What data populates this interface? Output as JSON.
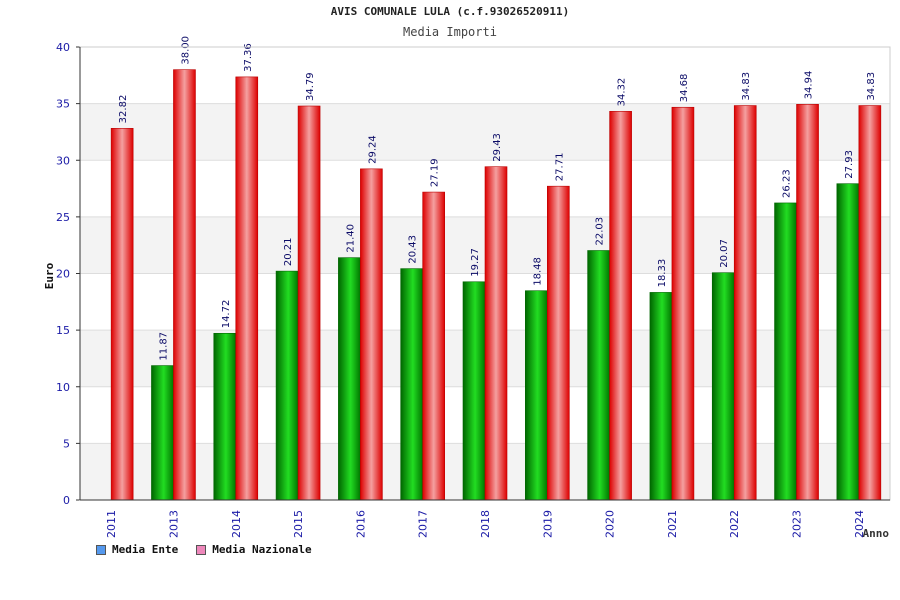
{
  "chart_data": {
    "type": "bar",
    "title": "AVIS COMUNALE LULA (c.f.93026520911)",
    "subtitle": "Media Importi",
    "xlabel": "Anno",
    "ylabel": "Euro",
    "ylim": [
      0,
      40
    ],
    "yticks": [
      0,
      5,
      10,
      15,
      20,
      25,
      30,
      35,
      40
    ],
    "grid": true,
    "legend_position": "bottom-left",
    "categories": [
      "2011",
      "2013",
      "2014",
      "2015",
      "2016",
      "2017",
      "2018",
      "2019",
      "2020",
      "2021",
      "2022",
      "2023",
      "2024"
    ],
    "series": [
      {
        "name": "Media Ente",
        "color": "#00aa00",
        "legend_color": "#5599ee",
        "values": [
          null,
          11.87,
          14.72,
          20.21,
          21.4,
          20.43,
          19.27,
          18.48,
          22.03,
          18.33,
          20.07,
          26.23,
          27.93
        ],
        "labels": [
          "",
          "11.87",
          "14.72",
          "20.21",
          "21.40",
          "20.43",
          "19.27",
          "18.48",
          "22.03",
          "18.33",
          "20.07",
          "26.23",
          "27.93"
        ]
      },
      {
        "name": "Media Nazionale",
        "color": "#ee1111",
        "legend_color": "#ee88bb",
        "values": [
          32.82,
          38.0,
          37.36,
          34.79,
          29.24,
          27.19,
          29.43,
          27.71,
          34.32,
          34.68,
          34.83,
          34.94,
          34.83
        ],
        "labels": [
          "32.82",
          "38.00",
          "37.36",
          "34.79",
          "29.24",
          "27.19",
          "29.43",
          "27.71",
          "34.32",
          "34.68",
          "34.83",
          "34.94",
          "34.83"
        ]
      }
    ]
  }
}
